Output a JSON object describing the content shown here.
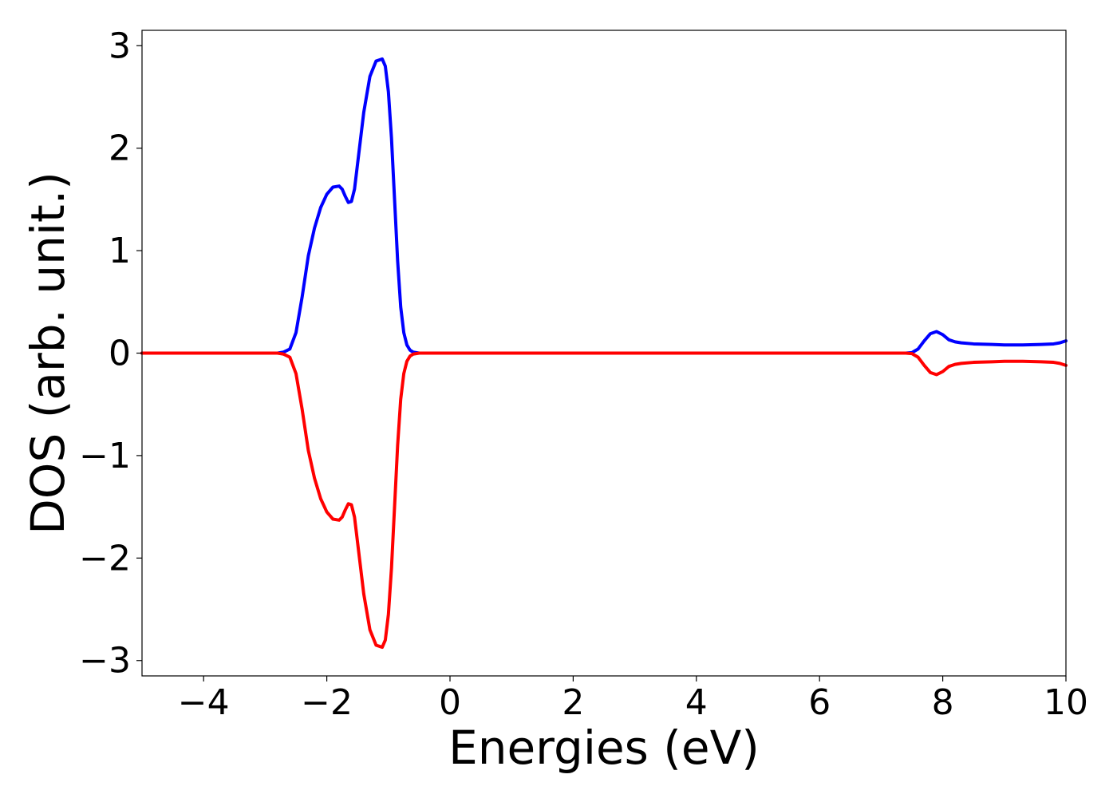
{
  "chart_data": {
    "type": "line",
    "title": "",
    "xlabel": "Energies (eV)",
    "ylabel": "DOS (arb. unit.)",
    "xlim": [
      -5,
      10
    ],
    "ylim": [
      -3.15,
      3.15
    ],
    "xticks": [
      -4,
      -2,
      0,
      2,
      4,
      6,
      8,
      10
    ],
    "xtick_labels": [
      "−4",
      "−2",
      "0",
      "2",
      "4",
      "6",
      "8",
      "10"
    ],
    "yticks": [
      -3,
      -2,
      -1,
      0,
      1,
      2,
      3
    ],
    "ytick_labels": [
      "−3",
      "−2",
      "−1",
      "0",
      "1",
      "2",
      "3"
    ],
    "grid": false,
    "legend": "none",
    "series": [
      {
        "color": "#0000ff",
        "x": [
          -5,
          -3,
          -2.8,
          -2.7,
          -2.6,
          -2.5,
          -2.4,
          -2.3,
          -2.2,
          -2.1,
          -2.0,
          -1.9,
          -1.8,
          -1.75,
          -1.7,
          -1.65,
          -1.6,
          -1.55,
          -1.5,
          -1.4,
          -1.3,
          -1.2,
          -1.1,
          -1.05,
          -1.0,
          -0.95,
          -0.9,
          -0.85,
          -0.8,
          -0.75,
          -0.7,
          -0.65,
          -0.6,
          -0.55,
          -0.5,
          -0.45,
          -0.4,
          0,
          2,
          4,
          6,
          7.4,
          7.5,
          7.6,
          7.7,
          7.8,
          7.9,
          8.0,
          8.1,
          8.2,
          8.3,
          8.5,
          8.8,
          9.0,
          9.3,
          9.6,
          9.8,
          9.9,
          10
        ],
        "y": [
          0,
          0,
          0,
          0.01,
          0.04,
          0.2,
          0.55,
          0.95,
          1.22,
          1.42,
          1.55,
          1.62,
          1.63,
          1.6,
          1.53,
          1.47,
          1.48,
          1.6,
          1.85,
          2.35,
          2.7,
          2.85,
          2.87,
          2.8,
          2.55,
          2.1,
          1.5,
          0.9,
          0.45,
          0.2,
          0.08,
          0.03,
          0.01,
          0.005,
          0,
          0,
          0,
          0,
          0,
          0,
          0,
          0,
          0.005,
          0.04,
          0.12,
          0.19,
          0.21,
          0.18,
          0.13,
          0.11,
          0.1,
          0.09,
          0.085,
          0.08,
          0.08,
          0.085,
          0.09,
          0.1,
          0.12
        ]
      },
      {
        "color": "#ff0000",
        "x": [
          -5,
          -3,
          -2.8,
          -2.7,
          -2.6,
          -2.5,
          -2.4,
          -2.3,
          -2.2,
          -2.1,
          -2.0,
          -1.9,
          -1.8,
          -1.75,
          -1.7,
          -1.65,
          -1.6,
          -1.55,
          -1.5,
          -1.4,
          -1.3,
          -1.2,
          -1.1,
          -1.05,
          -1.0,
          -0.95,
          -0.9,
          -0.85,
          -0.8,
          -0.75,
          -0.7,
          -0.65,
          -0.6,
          -0.55,
          -0.5,
          -0.45,
          -0.4,
          0,
          2,
          4,
          6,
          7.4,
          7.5,
          7.6,
          7.7,
          7.8,
          7.9,
          8.0,
          8.1,
          8.2,
          8.3,
          8.5,
          8.8,
          9.0,
          9.3,
          9.6,
          9.8,
          9.9,
          10
        ],
        "y": [
          0,
          0,
          0,
          -0.01,
          -0.04,
          -0.2,
          -0.55,
          -0.95,
          -1.22,
          -1.42,
          -1.55,
          -1.62,
          -1.63,
          -1.6,
          -1.53,
          -1.47,
          -1.48,
          -1.6,
          -1.85,
          -2.35,
          -2.7,
          -2.85,
          -2.87,
          -2.8,
          -2.55,
          -2.1,
          -1.5,
          -0.9,
          -0.45,
          -0.2,
          -0.08,
          -0.03,
          -0.01,
          -0.005,
          0,
          0,
          0,
          0,
          0,
          0,
          0,
          0,
          -0.005,
          -0.04,
          -0.12,
          -0.19,
          -0.21,
          -0.18,
          -0.13,
          -0.11,
          -0.1,
          -0.09,
          -0.085,
          -0.08,
          -0.08,
          -0.085,
          -0.09,
          -0.1,
          -0.12
        ]
      }
    ]
  }
}
